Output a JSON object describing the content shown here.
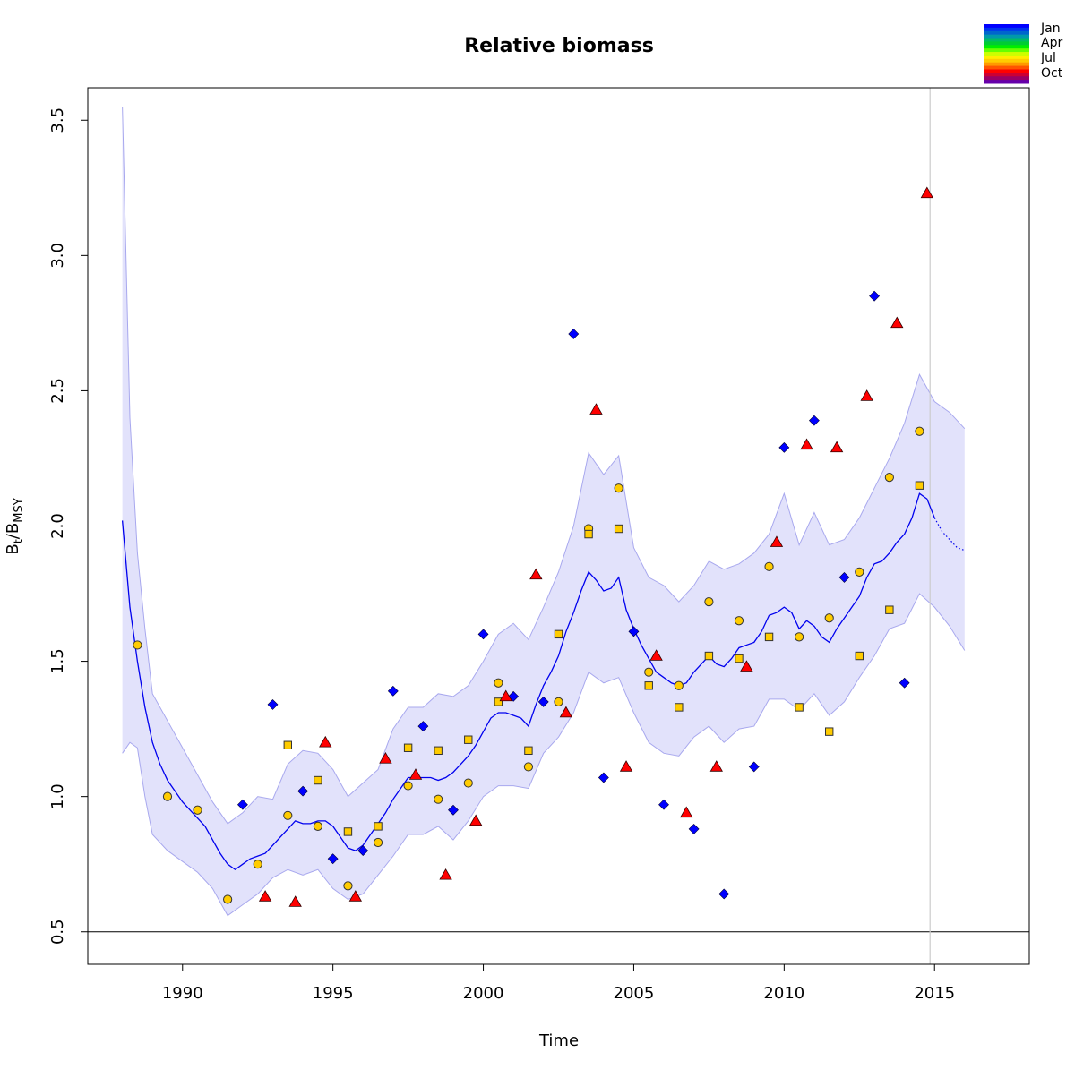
{
  "chart_data": {
    "type": "scatter",
    "title": "Relative biomass",
    "xlabel": "Time",
    "ylabel_main": "B",
    "ylabel_sub1": "t",
    "ylabel_slash": "/B",
    "ylabel_sub2": "MSY",
    "xlim": [
      1986.85,
      2018.15
    ],
    "ylim": [
      0.38,
      3.62
    ],
    "x_ticks": [
      1990,
      1995,
      2000,
      2005,
      2010,
      2015
    ],
    "y_ticks": [
      0.5,
      1.0,
      1.5,
      2.0,
      2.5,
      3.0,
      3.5
    ],
    "x_tick_labels": [
      "1990",
      "1995",
      "2000",
      "2005",
      "2010",
      "2015"
    ],
    "y_tick_labels": [
      "0.5",
      "1.0",
      "1.5",
      "2.0",
      "2.5",
      "3.0",
      "3.5"
    ],
    "hline": 0.5,
    "vline": 2014.85,
    "legend": {
      "placement": "top-right",
      "labels": [
        "Jan",
        "Apr",
        "Jul",
        "Oct"
      ],
      "colors": [
        "#0000ff",
        "#0033ee",
        "#0066cc",
        "#0099aa",
        "#00bb66",
        "#00cc33",
        "#00ee00",
        "#66ff00",
        "#ccff00",
        "#ffee00",
        "#ffcc00",
        "#ff9900",
        "#ff5500",
        "#ff0000",
        "#cc0033",
        "#990066",
        "#6600aa"
      ]
    },
    "colors": {
      "band": "#e2e2fb",
      "band_edge": "#a8a8ee",
      "line": "#0000ee",
      "q1": "#0000ff",
      "q3_circle": "#ffcc00",
      "q3_square": "#ffcc00",
      "q4": "#ff0000",
      "vline": "#cccccc"
    },
    "series": [
      {
        "marker": "diamond",
        "x": [
          1992,
          1993,
          1994,
          1995,
          1996,
          1997,
          1998,
          1999,
          2000,
          2001,
          2002,
          2003,
          2004,
          2005,
          2006,
          2007,
          2008,
          2009,
          2010,
          2011,
          2012,
          2013,
          2014
        ],
        "y": [
          0.97,
          1.34,
          1.02,
          0.77,
          0.8,
          1.39,
          1.26,
          0.95,
          1.6,
          1.37,
          1.35,
          2.71,
          1.07,
          1.61,
          0.97,
          0.88,
          0.64,
          1.11,
          2.29,
          2.39,
          1.81,
          2.85,
          1.42
        ]
      },
      {
        "marker": "circle",
        "x": [
          1988.5,
          1989.5,
          1990.5,
          1991.5,
          1992.5,
          1993.5,
          1994.5,
          1995.5,
          1996.5,
          1997.5,
          1998.5,
          1999.5,
          2000.5,
          2001.5,
          2002.5,
          2003.5,
          2004.5,
          2005.5,
          2006.5,
          2007.5,
          2008.5,
          2009.5,
          2010.5,
          2011.5,
          2012.5,
          2013.5,
          2014.5
        ],
        "y": [
          1.56,
          1.0,
          0.95,
          0.62,
          0.75,
          0.93,
          0.89,
          0.67,
          0.83,
          1.04,
          0.99,
          1.05,
          1.42,
          1.11,
          1.35,
          1.99,
          2.14,
          1.46,
          1.41,
          1.72,
          1.65,
          1.85,
          1.59,
          1.66,
          1.83,
          2.18,
          2.35
        ]
      },
      {
        "marker": "square",
        "x": [
          1993.5,
          1994.5,
          1995.5,
          1996.5,
          1997.5,
          1998.5,
          1999.5,
          2000.5,
          2001.5,
          2002.5,
          2003.5,
          2004.5,
          2005.5,
          2006.5,
          2007.5,
          2008.5,
          2009.5,
          2010.5,
          2011.5,
          2012.5,
          2013.5,
          2014.5
        ],
        "y": [
          1.19,
          1.06,
          0.87,
          0.89,
          1.18,
          1.17,
          1.21,
          1.35,
          1.17,
          1.6,
          1.97,
          1.99,
          1.41,
          1.33,
          1.52,
          1.51,
          1.59,
          1.33,
          1.24,
          1.52,
          1.69,
          2.15
        ]
      },
      {
        "marker": "triangle",
        "x": [
          1992.75,
          1993.75,
          1994.75,
          1995.75,
          1996.75,
          1997.75,
          1998.75,
          1999.75,
          2000.75,
          2001.75,
          2002.75,
          2003.75,
          2004.75,
          2005.75,
          2006.75,
          2007.75,
          2008.75,
          2009.75,
          2010.75,
          2011.75,
          2012.75,
          2013.75,
          2014.75
        ],
        "y": [
          0.63,
          0.61,
          1.2,
          0.63,
          1.14,
          1.08,
          0.71,
          0.91,
          1.37,
          1.82,
          1.31,
          2.43,
          1.11,
          1.52,
          0.94,
          1.11,
          1.48,
          1.94,
          2.3,
          2.29,
          2.48,
          2.75,
          3.23
        ]
      }
    ],
    "trend": {
      "x": [
        1988.0,
        1988.25,
        1988.5,
        1988.75,
        1989.0,
        1989.25,
        1989.5,
        1989.75,
        1990.0,
        1990.25,
        1990.5,
        1990.75,
        1991.0,
        1991.25,
        1991.5,
        1991.75,
        1992.0,
        1992.25,
        1992.5,
        1992.75,
        1993.0,
        1993.25,
        1993.5,
        1993.75,
        1994.0,
        1994.25,
        1994.5,
        1994.75,
        1995.0,
        1995.25,
        1995.5,
        1995.75,
        1996.0,
        1996.25,
        1996.5,
        1996.75,
        1997.0,
        1997.25,
        1997.5,
        1997.75,
        1998.0,
        1998.25,
        1998.5,
        1998.75,
        1999.0,
        1999.25,
        1999.5,
        1999.75,
        2000.0,
        2000.25,
        2000.5,
        2000.75,
        2001.0,
        2001.25,
        2001.5,
        2001.75,
        2002.0,
        2002.25,
        2002.5,
        2002.75,
        2003.0,
        2003.25,
        2003.5,
        2003.75,
        2004.0,
        2004.25,
        2004.5,
        2004.75,
        2005.0,
        2005.25,
        2005.5,
        2005.75,
        2006.0,
        2006.25,
        2006.5,
        2006.75,
        2007.0,
        2007.25,
        2007.5,
        2007.75,
        2008.0,
        2008.25,
        2008.5,
        2008.75,
        2009.0,
        2009.25,
        2009.5,
        2009.75,
        2010.0,
        2010.25,
        2010.5,
        2010.75,
        2011.0,
        2011.25,
        2011.5,
        2011.75,
        2012.0,
        2012.25,
        2012.5,
        2012.75,
        2013.0,
        2013.25,
        2013.5,
        2013.75,
        2014.0,
        2014.25,
        2014.5,
        2014.75,
        2015.0
      ],
      "y": [
        2.02,
        1.7,
        1.5,
        1.33,
        1.2,
        1.12,
        1.06,
        1.02,
        0.98,
        0.95,
        0.92,
        0.89,
        0.84,
        0.79,
        0.75,
        0.73,
        0.75,
        0.77,
        0.78,
        0.79,
        0.82,
        0.85,
        0.88,
        0.91,
        0.9,
        0.9,
        0.91,
        0.91,
        0.89,
        0.85,
        0.81,
        0.8,
        0.82,
        0.86,
        0.9,
        0.94,
        0.99,
        1.03,
        1.07,
        1.07,
        1.07,
        1.07,
        1.06,
        1.07,
        1.09,
        1.12,
        1.15,
        1.19,
        1.24,
        1.29,
        1.31,
        1.31,
        1.3,
        1.29,
        1.26,
        1.34,
        1.41,
        1.46,
        1.52,
        1.61,
        1.68,
        1.76,
        1.83,
        1.8,
        1.76,
        1.77,
        1.81,
        1.69,
        1.62,
        1.56,
        1.51,
        1.46,
        1.44,
        1.42,
        1.41,
        1.42,
        1.46,
        1.49,
        1.52,
        1.49,
        1.48,
        1.51,
        1.55,
        1.56,
        1.57,
        1.61,
        1.67,
        1.68,
        1.7,
        1.68,
        1.62,
        1.65,
        1.63,
        1.59,
        1.57,
        1.62,
        1.66,
        1.7,
        1.74,
        1.81,
        1.86,
        1.87,
        1.9,
        1.94,
        1.97,
        2.03,
        2.12,
        2.1,
        2.03
      ]
    },
    "forecast": {
      "x": [
        2015.0,
        2015.25,
        2015.5,
        2015.75,
        2016.0
      ],
      "y": [
        2.03,
        1.98,
        1.95,
        1.92,
        1.91
      ]
    },
    "band": {
      "x": [
        1988.0,
        1988.25,
        1988.5,
        1988.75,
        1989.0,
        1989.5,
        1990.0,
        1990.5,
        1991.0,
        1991.5,
        1992.0,
        1992.5,
        1993.0,
        1993.5,
        1994.0,
        1994.5,
        1995.0,
        1995.5,
        1996.0,
        1996.5,
        1997.0,
        1997.5,
        1998.0,
        1998.5,
        1999.0,
        1999.5,
        2000.0,
        2000.5,
        2001.0,
        2001.5,
        2002.0,
        2002.5,
        2003.0,
        2003.5,
        2004.0,
        2004.5,
        2005.0,
        2005.5,
        2006.0,
        2006.5,
        2007.0,
        2007.5,
        2008.0,
        2008.5,
        2009.0,
        2009.5,
        2010.0,
        2010.5,
        2011.0,
        2011.5,
        2012.0,
        2012.5,
        2013.0,
        2013.5,
        2014.0,
        2014.5,
        2015.0,
        2015.5,
        2016.0
      ],
      "upper": [
        3.55,
        2.4,
        1.9,
        1.62,
        1.38,
        1.28,
        1.18,
        1.08,
        0.98,
        0.9,
        0.94,
        1.0,
        0.99,
        1.12,
        1.17,
        1.16,
        1.1,
        1.0,
        1.05,
        1.1,
        1.25,
        1.33,
        1.33,
        1.38,
        1.37,
        1.41,
        1.5,
        1.6,
        1.64,
        1.58,
        1.7,
        1.83,
        2.0,
        2.27,
        2.19,
        2.26,
        1.92,
        1.81,
        1.78,
        1.72,
        1.78,
        1.87,
        1.84,
        1.86,
        1.9,
        1.97,
        2.12,
        1.93,
        2.05,
        1.93,
        1.95,
        2.03,
        2.14,
        2.25,
        2.38,
        2.56,
        2.46,
        2.42,
        2.36
      ],
      "lower": [
        1.16,
        1.2,
        1.18,
        1.0,
        0.86,
        0.8,
        0.76,
        0.72,
        0.66,
        0.56,
        0.6,
        0.64,
        0.7,
        0.73,
        0.71,
        0.73,
        0.66,
        0.62,
        0.64,
        0.71,
        0.78,
        0.86,
        0.86,
        0.89,
        0.84,
        0.91,
        1.0,
        1.04,
        1.04,
        1.03,
        1.16,
        1.22,
        1.31,
        1.46,
        1.42,
        1.44,
        1.31,
        1.2,
        1.16,
        1.15,
        1.22,
        1.26,
        1.2,
        1.25,
        1.26,
        1.36,
        1.36,
        1.32,
        1.38,
        1.3,
        1.35,
        1.44,
        1.52,
        1.62,
        1.64,
        1.75,
        1.7,
        1.63,
        1.54
      ]
    }
  }
}
